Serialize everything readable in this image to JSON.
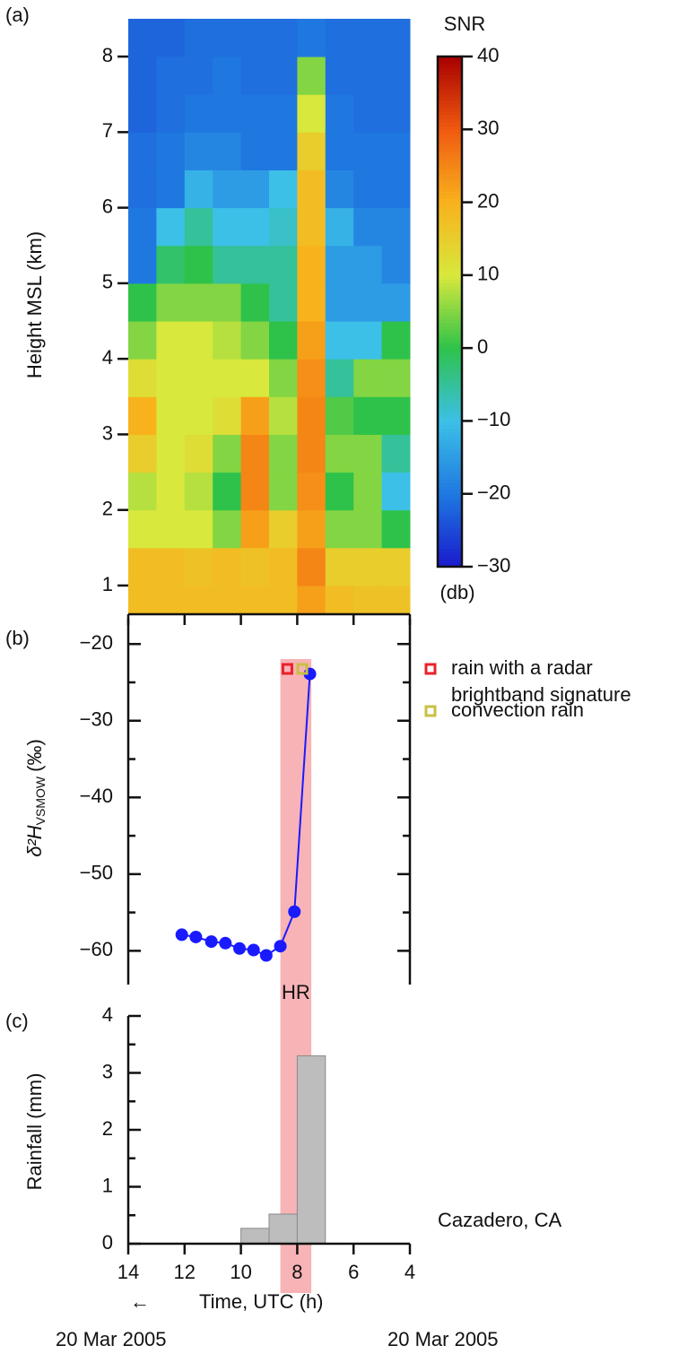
{
  "chart_data": [
    {
      "type": "heatmap",
      "panel_label": "(a)",
      "y_label": "Height MSL (km)",
      "x": [
        13.5,
        12.5,
        11.5,
        10.5,
        9.5,
        8.5,
        7.5,
        6.5,
        5.5,
        4.5
      ],
      "y": [
        0.75,
        1.25,
        1.75,
        2.25,
        2.75,
        3.25,
        3.75,
        4.25,
        4.75,
        5.25,
        5.75,
        6.25,
        6.75,
        7.25,
        7.75,
        8.25
      ],
      "z": [
        [
          18,
          18,
          10,
          8,
          15,
          20,
          12,
          5,
          0,
          -20,
          -20,
          -21,
          -21,
          -22,
          -22,
          -22
        ],
        [
          18,
          18,
          10,
          10,
          10,
          10,
          10,
          10,
          5,
          -2,
          -10,
          -20,
          -20,
          -21,
          -21,
          -22
        ],
        [
          18,
          17,
          10,
          8,
          12,
          10,
          10,
          10,
          5,
          0,
          -5,
          -12,
          -18,
          -20,
          -21,
          -21
        ],
        [
          18,
          18,
          5,
          0,
          5,
          12,
          10,
          8,
          5,
          -5,
          -10,
          -15,
          -18,
          -20,
          -20,
          -21
        ],
        [
          18,
          17,
          22,
          25,
          25,
          22,
          10,
          5,
          0,
          -5,
          -10,
          -15,
          -20,
          -20,
          -21,
          -21
        ],
        [
          18,
          18,
          15,
          5,
          5,
          8,
          5,
          0,
          -5,
          -5,
          -8,
          -10,
          -20,
          -20,
          -21,
          -21
        ],
        [
          22,
          25,
          22,
          24,
          25,
          25,
          24,
          22,
          20,
          20,
          18,
          18,
          15,
          10,
          5,
          -20
        ],
        [
          18,
          15,
          5,
          0,
          5,
          2,
          -5,
          -10,
          -15,
          -15,
          -12,
          -18,
          -20,
          -20,
          -21,
          -21
        ],
        [
          17,
          15,
          5,
          5,
          5,
          0,
          5,
          -10,
          -15,
          -15,
          -18,
          -20,
          -20,
          -21,
          -21,
          -21
        ],
        [
          17,
          15,
          0,
          -10,
          -5,
          0,
          5,
          0,
          -15,
          -18,
          -18,
          -20,
          -20,
          -21,
          -21,
          -21
        ]
      ],
      "xlim": [
        14,
        4
      ],
      "ylim": [
        0.62,
        8.63
      ],
      "xticks": [
        14,
        12,
        10,
        8,
        6,
        4
      ],
      "yticks": [
        1,
        2,
        3,
        4,
        5,
        6,
        7,
        8
      ],
      "colorbar": {
        "title": "SNR",
        "unit": "(db)",
        "lim": [
          -30,
          40
        ],
        "ticks": [
          {
            "value": -30,
            "label": "−30"
          },
          {
            "value": -20,
            "label": "−20"
          },
          {
            "value": -10,
            "label": "−10"
          },
          0,
          10,
          20,
          30,
          40
        ],
        "colors": [
          "#1a1acc",
          "#1f78e0",
          "#3cc0e8",
          "#2ec24a",
          "#d8e83c",
          "#f8b21c",
          "#f05a10",
          "#a80000"
        ]
      }
    },
    {
      "type": "line",
      "panel_label": "(b)",
      "y_label": "δ²H",
      "y_label_sub": "VSMOW",
      "y_label_unit": "(‰)",
      "x": [
        12.1,
        11.6,
        11.05,
        10.55,
        10.05,
        9.55,
        9.1,
        8.6,
        8.1,
        7.55
      ],
      "series": [
        {
          "color": "#1a1aff",
          "values": [
            -57.9,
            -58.2,
            -58.8,
            -59.0,
            -59.7,
            -59.9,
            -60.6,
            -59.4,
            -54.9,
            -23.9
          ]
        }
      ],
      "xlim": [
        14,
        4
      ],
      "ylim": [
        -64.4,
        -16.7
      ],
      "yticks": [
        {
          "value": -20,
          "label": "−20"
        },
        {
          "value": -30,
          "label": "−30"
        },
        {
          "value": -40,
          "label": "−40"
        },
        {
          "value": -50,
          "label": "−50"
        },
        {
          "value": -60,
          "label": "−60"
        }
      ],
      "yticks_minor": [
        -25,
        -35,
        -45,
        -55
      ],
      "highlight": {
        "x_range": [
          8.6,
          7.5
        ],
        "label": "HR",
        "color": "#f7b3b6"
      },
      "legend": [
        {
          "lines": [
            "rain with a radar",
            "brightband signature"
          ],
          "color": "#e8222a",
          "x": 8.35
        },
        {
          "lines": [
            "convection rain"
          ],
          "color": "#c8c040",
          "x": 7.82
        }
      ]
    },
    {
      "type": "histogram",
      "panel_label": "(c)",
      "y_label": "Rainfall (mm)",
      "x_label": "Time, UTC (h)",
      "arrow": "←",
      "bins": [
        10,
        9,
        8,
        7
      ],
      "values": [
        0.27,
        0.52,
        3.3
      ],
      "color": "#bdbdbd",
      "xlim": [
        14,
        4
      ],
      "ylim": [
        0,
        4
      ],
      "xticks": [
        14,
        12,
        10,
        8,
        6,
        4
      ],
      "yticks": [
        0,
        1,
        2,
        3,
        4
      ],
      "yticks_minor": [
        0.5,
        1.5,
        2.5,
        3.5
      ],
      "annotation": "Cazadero, CA",
      "date_labels": [
        "20 Mar 2005",
        "20 Mar 2005"
      ]
    }
  ]
}
